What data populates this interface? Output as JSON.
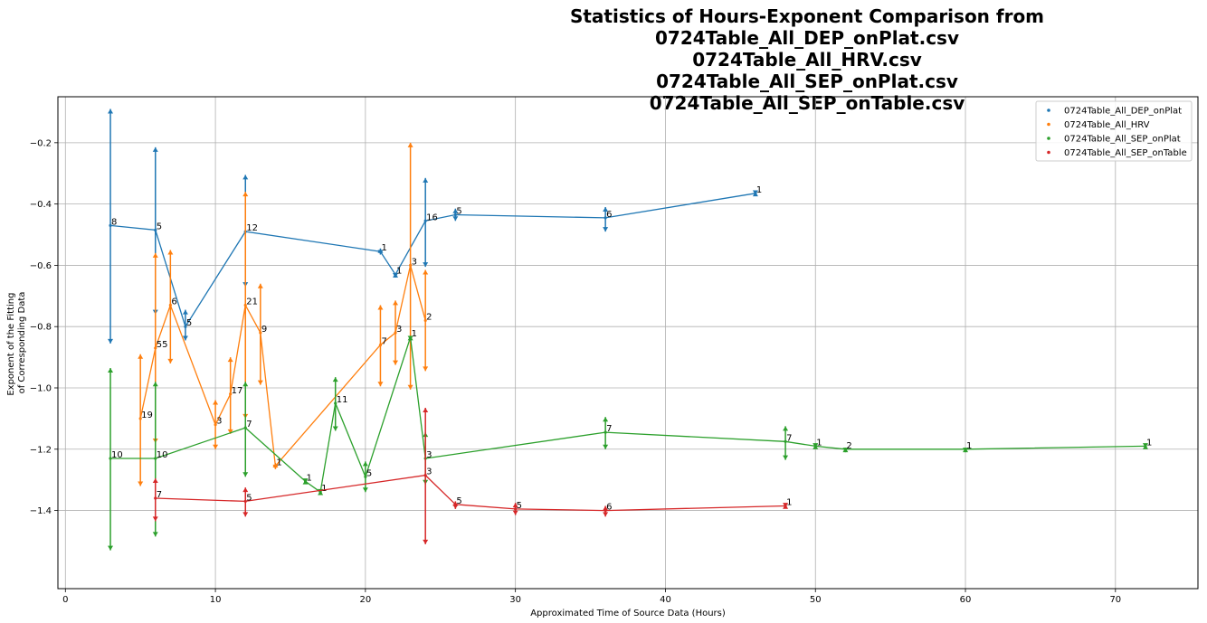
{
  "chart_data": {
    "type": "line",
    "title_lines": [
      "Statistics of Hours-Exponent Comparison from",
      "0724Table_All_DEP_onPlat.csv",
      "0724Table_All_HRV.csv",
      "0724Table_All_SEP_onPlat.csv",
      "0724Table_All_SEP_onTable.csv"
    ],
    "xlabel": "Approximated Time of Source Data (Hours)",
    "ylabel_lines": [
      "Exponent of the Fitting",
      "of Corresponding Data"
    ],
    "xlim": [
      -0.5,
      75.5
    ],
    "ylim": [
      -1.655,
      -0.05
    ],
    "xticks": [
      0,
      10,
      20,
      30,
      40,
      50,
      60,
      70
    ],
    "yticks": [
      -1.4,
      -1.2,
      -1.0,
      -0.8,
      -0.6,
      -0.4,
      -0.2
    ],
    "ytick_labels": [
      "−1.4",
      "−1.2",
      "−1.0",
      "−0.8",
      "−0.6",
      "−0.4",
      "−0.2"
    ],
    "grid": true,
    "legend_position": "top-right",
    "series": [
      {
        "name": "0724Table_All_DEP_onPlat",
        "color": "#1f77b4",
        "points": [
          {
            "x": 3,
            "y": -0.47,
            "high": -0.09,
            "low": -0.855,
            "count": "8"
          },
          {
            "x": 6,
            "y": -0.485,
            "high": -0.215,
            "low": -0.76,
            "count": "5"
          },
          {
            "x": 8,
            "y": -0.8,
            "high": -0.745,
            "low": -0.845,
            "count": "5"
          },
          {
            "x": 12,
            "y": -0.49,
            "high": -0.305,
            "low": -0.67,
            "count": "12"
          },
          {
            "x": 21,
            "y": -0.555,
            "high": -0.545,
            "low": -0.565,
            "count": "1"
          },
          {
            "x": 22,
            "y": -0.63,
            "high": -0.625,
            "low": -0.64,
            "count": "1"
          },
          {
            "x": 24,
            "y": -0.455,
            "high": -0.315,
            "low": -0.605,
            "count": "16"
          },
          {
            "x": 26,
            "y": -0.435,
            "high": -0.415,
            "low": -0.455,
            "count": "5"
          },
          {
            "x": 36,
            "y": -0.445,
            "high": -0.41,
            "low": -0.49,
            "count": "6"
          },
          {
            "x": 46,
            "y": -0.365,
            "high": -0.36,
            "low": -0.37,
            "count": "1"
          }
        ]
      },
      {
        "name": "0724Table_All_HRV",
        "color": "#ff7f0e",
        "points": [
          {
            "x": 5,
            "y": -1.1,
            "high": -0.89,
            "low": -1.32,
            "count": "19"
          },
          {
            "x": 6,
            "y": -0.87,
            "high": -0.56,
            "low": -1.18,
            "count": "55"
          },
          {
            "x": 7,
            "y": -0.73,
            "high": -0.55,
            "low": -0.92,
            "count": "6"
          },
          {
            "x": 10,
            "y": -1.12,
            "high": -1.04,
            "low": -1.2,
            "count": "3"
          },
          {
            "x": 11,
            "y": -1.02,
            "high": -0.9,
            "low": -1.15,
            "count": "17"
          },
          {
            "x": 12,
            "y": -0.73,
            "high": -0.36,
            "low": -1.1,
            "count": "21"
          },
          {
            "x": 13,
            "y": -0.82,
            "high": -0.66,
            "low": -0.99,
            "count": "9"
          },
          {
            "x": 14,
            "y": -1.255,
            "high": -1.245,
            "low": -1.265,
            "count": "1"
          },
          {
            "x": 21,
            "y": -0.86,
            "high": -0.73,
            "low": -0.995,
            "count": "7"
          },
          {
            "x": 22,
            "y": -0.82,
            "high": -0.715,
            "low": -0.925,
            "count": "3"
          },
          {
            "x": 23,
            "y": -0.6,
            "high": -0.2,
            "low": -1.005,
            "count": "3"
          },
          {
            "x": 24,
            "y": -0.78,
            "high": -0.615,
            "low": -0.945,
            "count": "2"
          }
        ]
      },
      {
        "name": "0724Table_All_SEP_onPlat",
        "color": "#2ca02c",
        "points": [
          {
            "x": 3,
            "y": -1.23,
            "high": -0.935,
            "low": -1.53,
            "count": "10"
          },
          {
            "x": 6,
            "y": -1.23,
            "high": -0.98,
            "low": -1.485,
            "count": "10"
          },
          {
            "x": 12,
            "y": -1.13,
            "high": -0.98,
            "low": -1.29,
            "count": "7"
          },
          {
            "x": 16,
            "y": -1.305,
            "high": -1.3,
            "low": -1.31,
            "count": "1"
          },
          {
            "x": 17,
            "y": -1.34,
            "high": -1.335,
            "low": -1.345,
            "count": "1"
          },
          {
            "x": 18,
            "y": -1.05,
            "high": -0.965,
            "low": -1.14,
            "count": "11"
          },
          {
            "x": 20,
            "y": -1.29,
            "high": -1.24,
            "low": -1.34,
            "count": "5"
          },
          {
            "x": 23,
            "y": -0.835,
            "high": -0.83,
            "low": -0.845,
            "count": "1"
          },
          {
            "x": 24,
            "y": -1.23,
            "high": -1.145,
            "low": -1.315,
            "count": "3"
          },
          {
            "x": 36,
            "y": -1.145,
            "high": -1.095,
            "low": -1.2,
            "count": "7"
          },
          {
            "x": 48,
            "y": -1.175,
            "high": -1.125,
            "low": -1.235,
            "count": "7"
          },
          {
            "x": 50,
            "y": -1.19,
            "high": -1.185,
            "low": -1.195,
            "count": "1"
          },
          {
            "x": 52,
            "y": -1.2,
            "high": -1.195,
            "low": -1.21,
            "count": "2"
          },
          {
            "x": 60,
            "y": -1.2,
            "high": -1.195,
            "low": -1.21,
            "count": "1"
          },
          {
            "x": 72,
            "y": -1.19,
            "high": -1.185,
            "low": -1.195,
            "count": "1"
          }
        ]
      },
      {
        "name": "0724Table_All_SEP_onTable",
        "color": "#d62728",
        "points": [
          {
            "x": 6,
            "y": -1.36,
            "high": -1.295,
            "low": -1.435,
            "count": "7"
          },
          {
            "x": 12,
            "y": -1.37,
            "high": -1.325,
            "low": -1.42,
            "count": "5"
          },
          {
            "x": 24,
            "y": -1.285,
            "high": -1.065,
            "low": -1.51,
            "count": "3"
          },
          {
            "x": 26,
            "y": -1.38,
            "high": -1.37,
            "low": -1.395,
            "count": "5"
          },
          {
            "x": 30,
            "y": -1.395,
            "high": -1.375,
            "low": -1.415,
            "count": "5"
          },
          {
            "x": 36,
            "y": -1.4,
            "high": -1.385,
            "low": -1.42,
            "count": "6"
          },
          {
            "x": 48,
            "y": -1.385,
            "high": -1.38,
            "low": -1.39,
            "count": "1"
          }
        ]
      }
    ]
  }
}
